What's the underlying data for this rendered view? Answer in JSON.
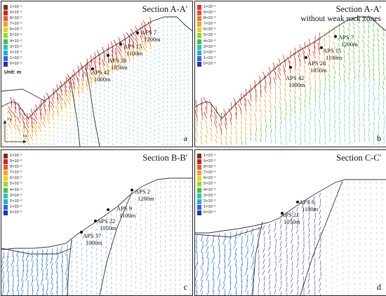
{
  "legend": {
    "labels": [
      "1×10⁻¹",
      "9×10⁻²",
      "8×10⁻²",
      "7×10⁻²",
      "6×10⁻²",
      "5×10⁻²",
      "4×10⁻²",
      "3×10⁻²",
      "2×10⁻²",
      "1×10⁻²",
      "0×10⁻²"
    ],
    "colors": [
      "#7a2e1e",
      "#d42020",
      "#ef5a1e",
      "#f6a020",
      "#e6d41a",
      "#9ad62a",
      "#38c83a",
      "#28c6b0",
      "#2aa6e8",
      "#2a6ae0",
      "#2330c0"
    ],
    "colors_alt": [
      "#e83020",
      "#f04828",
      "#f07828",
      "#f5a024",
      "#e6d41a",
      "#9ad62a",
      "#38c83a",
      "#28c6b0",
      "#2aa6e8",
      "#2a6ae0",
      "#2330c0"
    ],
    "unit": "Unit: m"
  },
  "axis": {
    "y": "+y",
    "x": "+x"
  },
  "panels": {
    "a": {
      "title": "Section A-A'",
      "letter": "a",
      "points": [
        {
          "name": "APS 7",
          "elev": "1200m"
        },
        {
          "name": "APS 15",
          "elev": "1100m"
        },
        {
          "name": "APS 28",
          "elev": "1050m"
        },
        {
          "name": "APS 42",
          "elev": "1000m"
        }
      ]
    },
    "b": {
      "title": "Section A-A'",
      "subtitle": "without weak rock zones",
      "letter": "b",
      "points": [
        {
          "name": "APS 7",
          "elev": "1200m"
        },
        {
          "name": "APS 15",
          "elev": "1100m"
        },
        {
          "name": "APS 28",
          "elev": "1050m"
        },
        {
          "name": "APS 42",
          "elev": "1000m"
        }
      ]
    },
    "c": {
      "title": "Section B-B'",
      "letter": "c",
      "points": [
        {
          "name": "APS 2",
          "elev": "1200m"
        },
        {
          "name": "APS 9",
          "elev": "1100m"
        },
        {
          "name": "APS 22",
          "elev": "1050m"
        },
        {
          "name": "APS 37",
          "elev": "1000m"
        }
      ]
    },
    "d": {
      "title": "Section C-C'",
      "letter": "d",
      "points": [
        {
          "name": "APS 8",
          "elev": "1100m"
        },
        {
          "name": "APS 21",
          "elev": "1050m"
        }
      ]
    }
  }
}
